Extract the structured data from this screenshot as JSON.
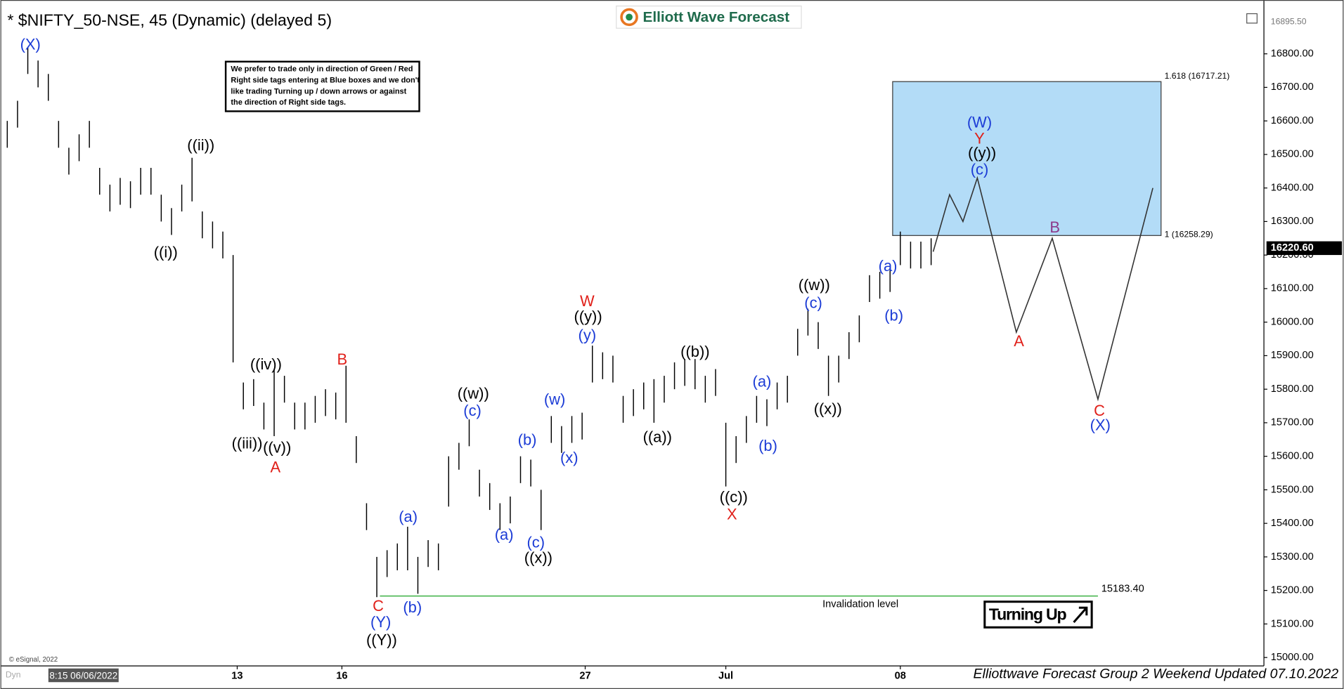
{
  "chart_data": {
    "type": "ohlc",
    "title": "* $NIFTY_50-NSE, 45 (Dynamic) (delayed 5)",
    "logo": "Elliott Wave Forecast",
    "note": [
      "We prefer to trade only in direction of Green / Red",
      "Right side tags entering at Blue boxes and we don't",
      "like trading Turning up / down arrows or against",
      "the direction of Right side tags."
    ],
    "footer": "Elliottwave Forecast Group 2 Weekend Updated 07.10.2022",
    "copyright": "© eSignal, 2022",
    "corner_label": "Dyn",
    "cursor_label": "8:15 06/06/2022",
    "signal": "Turning Up",
    "xlim": [
      -0.25,
      122.42
    ],
    "xticks": [
      {
        "value": 22.4,
        "label": "13"
      },
      {
        "value": 32.6,
        "label": "16"
      },
      {
        "value": 56.3,
        "label": "27"
      },
      {
        "value": 70,
        "label": "Jul"
      },
      {
        "value": 87,
        "label": "08"
      }
    ],
    "ylim": [
      14975,
      16935
    ],
    "yticks": [
      {
        "value": 15000,
        "label": "15000.00"
      },
      {
        "value": 15100,
        "label": "15100.00"
      },
      {
        "value": 15200,
        "label": "15200.00"
      },
      {
        "value": 15300,
        "label": "15300.00"
      },
      {
        "value": 15400,
        "label": "15400.00"
      },
      {
        "value": 15500,
        "label": "15500.00"
      },
      {
        "value": 15600,
        "label": "15600.00"
      },
      {
        "value": 15700,
        "label": "15700.00"
      },
      {
        "value": 15800,
        "label": "15800.00"
      },
      {
        "value": 15900,
        "label": "15900.00"
      },
      {
        "value": 16000,
        "label": "16000.00"
      },
      {
        "value": 16100,
        "label": "16100.00"
      },
      {
        "value": 16200,
        "label": "16200.00"
      },
      {
        "value": 16300,
        "label": "16300.00"
      },
      {
        "value": 16400,
        "label": "16400.00"
      },
      {
        "value": 16500,
        "label": "16500.00"
      },
      {
        "value": 16600,
        "label": "16600.00"
      },
      {
        "value": 16700,
        "label": "16700.00"
      },
      {
        "value": 16800,
        "label": "16800.00"
      }
    ],
    "high_price": {
      "value": 16895.5,
      "label": "16895.50"
    },
    "last_price": {
      "value": 16220.6,
      "label": "16220.60"
    },
    "bar_color": "#000000",
    "highs": [
      16600,
      16660,
      16820,
      16780,
      16740,
      16600,
      16520,
      16560,
      16600,
      16460,
      16410,
      16430,
      16420,
      16460,
      16460,
      16380,
      16340,
      16410,
      16490,
      16330,
      16300,
      16270,
      16200,
      15820,
      15830,
      15760,
      15860,
      15840,
      15760,
      15760,
      15780,
      15800,
      15790,
      15870,
      15660,
      15460,
      15300,
      15320,
      15340,
      15390,
      15300,
      15350,
      15340,
      15600,
      15640,
      15710,
      15560,
      15520,
      15460,
      15480,
      15600,
      15590,
      15500,
      15720,
      15690,
      15720,
      15730,
      15930,
      15910,
      15900,
      15780,
      15800,
      15820,
      15830,
      15840,
      15880,
      15890,
      15890,
      15840,
      15860,
      15700,
      15660,
      15720,
      15780,
      15770,
      15820,
      15840,
      15980,
      16040,
      16000,
      15900,
      15900,
      15970,
      16020,
      16140,
      16150,
      16170,
      16270,
      16240,
      16240,
      16250
    ],
    "lows": [
      16520,
      16580,
      16740,
      16700,
      16660,
      16520,
      16440,
      16480,
      16520,
      16380,
      16330,
      16350,
      16340,
      16380,
      16380,
      16300,
      16260,
      16330,
      16360,
      16250,
      16220,
      16190,
      15880,
      15740,
      15750,
      15680,
      15660,
      15760,
      15680,
      15680,
      15700,
      15720,
      15710,
      15700,
      15580,
      15380,
      15180,
      15240,
      15260,
      15260,
      15190,
      15270,
      15260,
      15450,
      15560,
      15630,
      15480,
      15440,
      15380,
      15400,
      15520,
      15510,
      15380,
      15640,
      15610,
      15640,
      15650,
      15820,
      15830,
      15820,
      15700,
      15720,
      15740,
      15700,
      15760,
      15800,
      15810,
      15800,
      15760,
      15780,
      15510,
      15580,
      15640,
      15700,
      15690,
      15740,
      15760,
      15900,
      15960,
      15920,
      15780,
      15820,
      15890,
      15940,
      16060,
      16070,
      16090,
      16170,
      16160,
      16160,
      16170
    ],
    "projection": {
      "color": "#333333",
      "x": [
        90.2,
        91.8,
        93.1,
        94.5,
        98.3,
        101.8,
        106.25,
        111.6
      ],
      "values": [
        16210,
        16380,
        16300,
        16430,
        15970,
        16250,
        15770,
        16400
      ]
    },
    "target_box": {
      "color": "#b3dcf7",
      "xlim": [
        86.25,
        112.4
      ],
      "ylim": [
        16258.29,
        16717.21
      ],
      "labels": [
        "1.618 (16717.21)",
        "1 (16258.29)"
      ]
    },
    "invalidation": {
      "color": "#3cb043",
      "value": 15183.4,
      "value_label": "15183.40",
      "xlim": [
        36.3,
        106.25
      ],
      "text": "Invalidation level"
    },
    "annotations": [
      {
        "text": "(X)",
        "color": "#1c3cd6"
      },
      {
        "text": "((i))",
        "color": "#000000"
      },
      {
        "text": "((ii))",
        "color": "#000000"
      },
      {
        "text": "((iv))",
        "color": "#000000"
      },
      {
        "text": "((iii))",
        "color": "#000000"
      },
      {
        "text": "((v))",
        "color": "#000000"
      },
      {
        "text": "A",
        "color": "#e0201a"
      },
      {
        "text": "B",
        "color": "#e0201a"
      },
      {
        "text": "C",
        "color": "#e0201a"
      },
      {
        "text": "(Y)",
        "color": "#1c3cd6"
      },
      {
        "text": "((Y))",
        "color": "#000000"
      },
      {
        "text": "(a)",
        "color": "#1c3cd6"
      },
      {
        "text": "(b)",
        "color": "#1c3cd6"
      },
      {
        "text": "((w))",
        "color": "#000000"
      },
      {
        "text": "(c)",
        "color": "#1c3cd6"
      },
      {
        "text": "(a)",
        "color": "#1c3cd6"
      },
      {
        "text": "(b)",
        "color": "#1c3cd6"
      },
      {
        "text": "(c)",
        "color": "#1c3cd6"
      },
      {
        "text": "((x))",
        "color": "#000000"
      },
      {
        "text": "(w)",
        "color": "#1c3cd6"
      },
      {
        "text": "(x)",
        "color": "#1c3cd6"
      },
      {
        "text": "W",
        "color": "#e0201a"
      },
      {
        "text": "((y))",
        "color": "#000000"
      },
      {
        "text": "(y)",
        "color": "#1c3cd6"
      },
      {
        "text": "((a))",
        "color": "#000000"
      },
      {
        "text": "((b))",
        "color": "#000000"
      },
      {
        "text": "((c))",
        "color": "#000000"
      },
      {
        "text": "X",
        "color": "#e0201a"
      },
      {
        "text": "(a)",
        "color": "#1c3cd6"
      },
      {
        "text": "(b)",
        "color": "#1c3cd6"
      },
      {
        "text": "((w))",
        "color": "#000000"
      },
      {
        "text": "(c)",
        "color": "#1c3cd6"
      },
      {
        "text": "((x))",
        "color": "#000000"
      },
      {
        "text": "(a)",
        "color": "#1c3cd6"
      },
      {
        "text": "(b)",
        "color": "#1c3cd6"
      },
      {
        "text": "(W)",
        "color": "#1c3cd6"
      },
      {
        "text": "Y",
        "color": "#e0201a"
      },
      {
        "text": "((y))",
        "color": "#000000"
      },
      {
        "text": "(c)",
        "color": "#1c3cd6"
      },
      {
        "text": "B",
        "color": "#8b3a8b"
      },
      {
        "text": "A",
        "color": "#e0201a"
      },
      {
        "text": "C",
        "color": "#e0201a"
      },
      {
        "text": "(X)",
        "color": "#1c3cd6"
      }
    ]
  }
}
